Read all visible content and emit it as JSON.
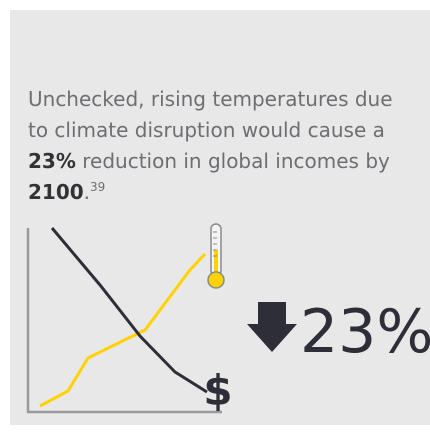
{
  "statement": {
    "before": "Unchecked, rising temperatures due to climate disruption would cause a ",
    "highlight": "23%",
    "middle": " reduction in global incomes by ",
    "year": "2100",
    "end": ".",
    "footnote": "39"
  },
  "graphic": {
    "currency": "$",
    "stat": "23%"
  }
}
